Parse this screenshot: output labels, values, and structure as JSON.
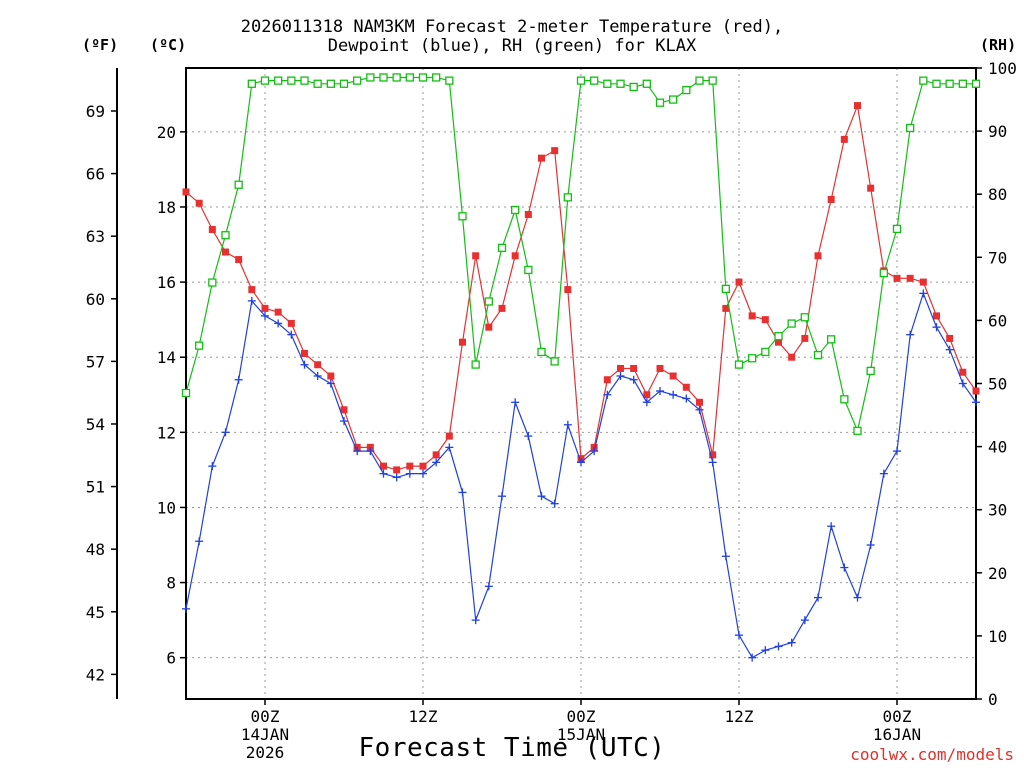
{
  "chart_data": {
    "type": "line",
    "title_line1": "2026011318 NAM3KM Forecast 2-meter Temperature (red),",
    "title_line2": "Dewpoint (blue), RH (green) for KLAX",
    "xlabel": "Forecast Time (UTC)",
    "credit": "coolwx.com/models",
    "units": {
      "left_f": "(ºF)",
      "left_c": "(ºC)",
      "right_rh": "(RH)"
    },
    "forecast_hours": [
      0,
      1,
      2,
      3,
      4,
      5,
      6,
      7,
      8,
      9,
      10,
      11,
      12,
      13,
      14,
      15,
      16,
      17,
      18,
      19,
      20,
      21,
      22,
      23,
      24,
      25,
      26,
      27,
      28,
      29,
      30,
      31,
      32,
      33,
      34,
      35,
      36,
      37,
      38,
      39,
      40,
      41,
      42,
      43,
      44,
      45,
      46,
      47,
      48,
      49,
      50,
      51,
      52,
      53,
      54,
      55,
      56,
      57,
      58,
      59,
      60
    ],
    "x_ticks": [
      {
        "hour": 6,
        "lines": [
          "00Z",
          "14JAN",
          "2026"
        ]
      },
      {
        "hour": 18,
        "lines": [
          "12Z"
        ]
      },
      {
        "hour": 30,
        "lines": [
          "00Z",
          "15JAN"
        ]
      },
      {
        "hour": 42,
        "lines": [
          "12Z"
        ]
      },
      {
        "hour": 54,
        "lines": [
          "00Z",
          "16JAN"
        ]
      }
    ],
    "xlim": [
      0,
      60
    ],
    "celsius_axis": {
      "range": [
        4.9,
        21.7
      ],
      "ticks": [
        6,
        8,
        10,
        12,
        14,
        16,
        18,
        20
      ]
    },
    "fahrenheit_axis": {
      "ticks": [
        42,
        45,
        48,
        51,
        54,
        57,
        60,
        63,
        66,
        69
      ]
    },
    "rh_axis": {
      "range": [
        0,
        100
      ],
      "ticks": [
        0,
        10,
        20,
        30,
        40,
        50,
        60,
        70,
        80,
        90,
        100
      ]
    },
    "series": [
      {
        "name": "2-meter Temperature (°C)",
        "color": "#e83030",
        "marker": "filled-square",
        "axis": "celsius",
        "values": [
          18.4,
          18.1,
          17.4,
          16.8,
          16.6,
          15.8,
          15.3,
          15.2,
          14.9,
          14.1,
          13.8,
          13.5,
          12.6,
          11.6,
          11.6,
          11.1,
          11.0,
          11.1,
          11.1,
          11.4,
          11.9,
          14.4,
          16.7,
          14.8,
          15.3,
          16.7,
          17.8,
          19.3,
          19.5,
          15.8,
          11.3,
          11.6,
          13.4,
          13.7,
          13.7,
          13.0,
          13.7,
          13.5,
          13.2,
          12.8,
          11.4,
          15.3,
          16.0,
          15.1,
          15.0,
          14.4,
          14.0,
          14.5,
          16.7,
          18.2,
          19.8,
          20.7,
          18.5,
          16.3,
          16.1,
          16.1,
          16.0,
          15.1,
          14.5,
          13.6,
          13.1
        ]
      },
      {
        "name": "Dewpoint (°C)",
        "color": "#2040e0",
        "marker": "plus",
        "axis": "celsius",
        "values": [
          7.3,
          9.1,
          11.1,
          12.0,
          13.4,
          15.5,
          15.1,
          14.9,
          14.6,
          13.8,
          13.5,
          13.3,
          12.3,
          11.5,
          11.5,
          10.9,
          10.8,
          10.9,
          10.9,
          11.2,
          11.6,
          10.4,
          7.0,
          7.9,
          10.3,
          12.8,
          11.9,
          10.3,
          10.1,
          12.2,
          11.2,
          11.5,
          13.0,
          13.5,
          13.4,
          12.8,
          13.1,
          13.0,
          12.9,
          12.6,
          11.2,
          8.7,
          6.6,
          6.0,
          6.2,
          6.3,
          6.4,
          7.0,
          7.6,
          9.5,
          8.4,
          7.6,
          9.0,
          10.9,
          11.5,
          14.6,
          15.7,
          14.8,
          14.2,
          13.3,
          12.8
        ]
      },
      {
        "name": "RH (%)",
        "color": "#10c010",
        "marker": "open-square",
        "axis": "rh",
        "values": [
          48.5,
          56.0,
          66.0,
          73.5,
          81.5,
          97.5,
          98.0,
          98.0,
          98.0,
          98.0,
          97.5,
          97.5,
          97.5,
          98.0,
          98.5,
          98.5,
          98.5,
          98.5,
          98.5,
          98.5,
          98.0,
          76.5,
          53.0,
          63.0,
          71.5,
          77.5,
          68.0,
          55.0,
          53.5,
          79.5,
          98.0,
          98.0,
          97.5,
          97.5,
          97.0,
          97.5,
          94.5,
          95.0,
          96.5,
          98.0,
          98.0,
          65.0,
          53.0,
          54.0,
          55.0,
          57.5,
          59.5,
          60.5,
          54.5,
          57.0,
          47.5,
          42.5,
          52.0,
          67.5,
          74.5,
          90.5,
          98.0,
          97.5,
          97.5,
          97.5,
          97.5
        ]
      }
    ]
  }
}
